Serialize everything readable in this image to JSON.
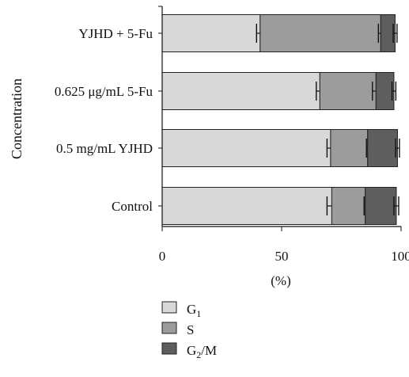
{
  "chart_data": {
    "type": "bar",
    "orientation": "horizontal",
    "stacked": true,
    "xlabel": "(%)",
    "ylabel": "Concentration",
    "xlim": [
      0,
      100
    ],
    "xticks": [
      0,
      50,
      100
    ],
    "grid": false,
    "legend_position": "bottom-center",
    "categories": [
      "Control",
      "0.5 mg/mL YJHD",
      "0.625 μg/mL 5-Fu",
      "YJHD + 5-Fu"
    ],
    "series": [
      {
        "name": "G1",
        "name_main": "G",
        "name_sub": "1",
        "color": "#d8d8d8",
        "values": [
          71,
          70.5,
          66,
          41
        ],
        "errors": [
          2,
          1.5,
          1.5,
          1.5
        ]
      },
      {
        "name": "S",
        "name_main": "S",
        "name_sub": "",
        "color": "#9c9c9c",
        "values": [
          14,
          15.5,
          23.5,
          50.5
        ],
        "errors": [
          0.5,
          0.5,
          1.5,
          1
        ]
      },
      {
        "name": "G2/M",
        "name_main": "G",
        "name_sub": "2",
        "name_tail": "/M",
        "color": "#5e5e5e",
        "values": [
          13,
          12.5,
          7.5,
          6
        ],
        "errors": [
          1,
          0.8,
          0.8,
          0.8
        ]
      }
    ]
  }
}
